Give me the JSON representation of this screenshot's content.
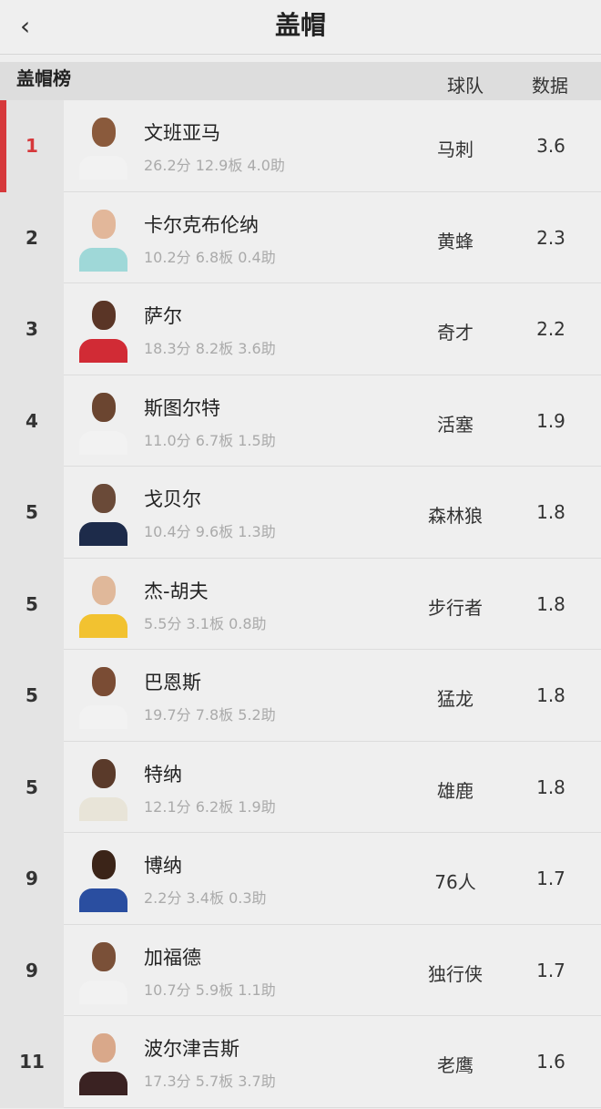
{
  "header": {
    "back_icon": "chevron-left-icon",
    "title": "盖帽"
  },
  "section": {
    "label": "盖帽榜",
    "col_team": "球队",
    "col_value": "数据"
  },
  "colors": {
    "accent": "#d6383b"
  },
  "players": [
    {
      "rank": "1",
      "name": "文班亚马",
      "stats": "26.2分  12.9板  4.0助",
      "team": "马刺",
      "value": "3.6",
      "skin": "#8a5a3c",
      "jersey": "#f2f2f2"
    },
    {
      "rank": "2",
      "name": "卡尔克布伦纳",
      "stats": "10.2分  6.8板  0.4助",
      "team": "黄蜂",
      "value": "2.3",
      "skin": "#e2b79a",
      "jersey": "#9fd8d8"
    },
    {
      "rank": "3",
      "name": "萨尔",
      "stats": "18.3分  8.2板  3.6助",
      "team": "奇才",
      "value": "2.2",
      "skin": "#5a3526",
      "jersey": "#d12b35"
    },
    {
      "rank": "4",
      "name": "斯图尔特",
      "stats": "11.0分  6.7板  1.5助",
      "team": "活塞",
      "value": "1.9",
      "skin": "#6b4530",
      "jersey": "#f2f2f2"
    },
    {
      "rank": "5",
      "name": "戈贝尔",
      "stats": "10.4分  9.6板  1.3助",
      "team": "森林狼",
      "value": "1.8",
      "skin": "#6a4a38",
      "jersey": "#1d2b4a"
    },
    {
      "rank": "5",
      "name": "杰-胡夫",
      "stats": "5.5分  3.1板  0.8助",
      "team": "步行者",
      "value": "1.8",
      "skin": "#e0b89a",
      "jersey": "#f2c230"
    },
    {
      "rank": "5",
      "name": "巴恩斯",
      "stats": "19.7分  7.8板  5.2助",
      "team": "猛龙",
      "value": "1.8",
      "skin": "#7a4c34",
      "jersey": "#f2f2f2"
    },
    {
      "rank": "5",
      "name": "特纳",
      "stats": "12.1分  6.2板  1.9助",
      "team": "雄鹿",
      "value": "1.8",
      "skin": "#5a3a2a",
      "jersey": "#e8e4d8"
    },
    {
      "rank": "9",
      "name": "博纳",
      "stats": "2.2分  3.4板  0.3助",
      "team": "76人",
      "value": "1.7",
      "skin": "#3b2418",
      "jersey": "#2a4ea0"
    },
    {
      "rank": "9",
      "name": "加福德",
      "stats": "10.7分  5.9板  1.1助",
      "team": "独行侠",
      "value": "1.7",
      "skin": "#7a5038",
      "jersey": "#f2f2f2"
    },
    {
      "rank": "11",
      "name": "波尔津吉斯",
      "stats": "17.3分  5.7板  3.7助",
      "team": "老鹰",
      "value": "1.6",
      "skin": "#d9a88a",
      "jersey": "#3a2222"
    }
  ]
}
